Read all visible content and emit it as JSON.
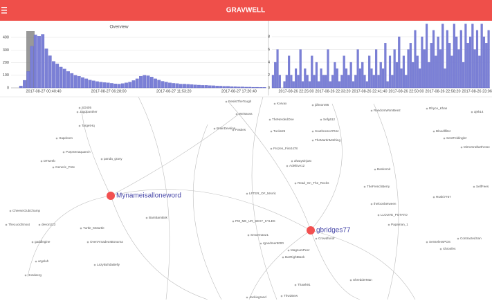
{
  "header": {
    "title": "GRAVWELL"
  },
  "overview": {
    "type": "bar",
    "title": "Overview",
    "color": "#7b80d6",
    "values": [
      15,
      60,
      130,
      330,
      420,
      410,
      425,
      310,
      255,
      210,
      190,
      165,
      150,
      130,
      115,
      100,
      92,
      82,
      72,
      62,
      56,
      50,
      46,
      42,
      40,
      36,
      32,
      30,
      34,
      40,
      46,
      58,
      72,
      92,
      100,
      96,
      86,
      72,
      62,
      52,
      46,
      40,
      36,
      34,
      30,
      30,
      28,
      26,
      24,
      22,
      20,
      20,
      18,
      17,
      15,
      14,
      12,
      12,
      10,
      9,
      8,
      8,
      6,
      6,
      5,
      5,
      4,
      4
    ],
    "ylim": [
      0,
      450
    ],
    "yticks": [
      0,
      100,
      200,
      300,
      400
    ],
    "xtick_labels": [
      "2017-08-27 00:40:40",
      "2017-08-27 06:28:00",
      "2017-08-27 11:53:20",
      "2017-08-27 17:20:40"
    ]
  },
  "detail": {
    "type": "bar",
    "color": "#7b80d6",
    "values": [
      2,
      4,
      6,
      2,
      0,
      1,
      2,
      5,
      2,
      1,
      3,
      2,
      6,
      1,
      3,
      2,
      1,
      5,
      2,
      4,
      1,
      3,
      2,
      2,
      6,
      1,
      2,
      4,
      3,
      1,
      2,
      5,
      3,
      2,
      4,
      1,
      2,
      6,
      3,
      4,
      2,
      1,
      5,
      3,
      2,
      6,
      2,
      4,
      3,
      7,
      1,
      5,
      2,
      6,
      4,
      8,
      3,
      5,
      2,
      6,
      7,
      4,
      9,
      5,
      3,
      8,
      6,
      10,
      4,
      7,
      9,
      5,
      8,
      6,
      10,
      3,
      9,
      7,
      5,
      10,
      8,
      6,
      9,
      4,
      10,
      7,
      8,
      10,
      6,
      9,
      5,
      10,
      8,
      7,
      9
    ],
    "ylim": [
      0,
      10.5
    ],
    "yticks": [
      0,
      2,
      4,
      6,
      8
    ],
    "xtick_labels": [
      "2017-08-26 22:25:00",
      "2017-08-26 22:33:20",
      "2017-08-26 22:41:40",
      "2017-08-26 22:50:00",
      "2017-08-26 22:58:20",
      "2017-08-26 23:06:40"
    ]
  },
  "graph": {
    "hubs": [
      "Mynameisalloneword",
      "gbridges77"
    ],
    "nodes": [
      "SD405",
      "Jagdpanther",
      "TargetHq",
      "Hapdoom",
      "PurpSenaquanch",
      "panda_gravy",
      "DTweeb",
      "Generic_Pete",
      "CheeseClubChamp",
      "TheLucidSnout",
      "devon223",
      "gaddlegine",
      "argoluh",
      "Hondacrg",
      "Turtle_Moturtle",
      "OverIAmadeusBonuma",
      "LazyBuhdaBelly",
      "BamBamBok",
      "ResistTheTough",
      "Korvax",
      "jdhnom96",
      "Weissoss",
      "TheNerdedOne",
      "Sefg612",
      "BrainDevkins",
      "Pasties",
      "Tucks26",
      "Southness47044",
      "TheMartinMothing",
      "Frozen_Fire2478",
      "alwaysinjust",
      "AdelEve12",
      "Read_On_The_Rocks",
      "LFTER_OF_MAVic",
      "PM_ME_UR_SEXY_KYLES",
      "Smoeman21",
      "rgoodmer5000",
      "BarRightBank",
      "MagnumPeer",
      "Crowdfundr",
      "TheFrenchBerry",
      "RandomWomBee2",
      "Rhyce_Khan",
      "ajek14",
      "Bloodlfilter",
      "SentFeldingler",
      "Mirrorsraftarthrose",
      "SelfFees",
      "Ruski7767",
      "theloonbetween",
      "LLOUVE_POTATO",
      "Papaman_1",
      "SenselessPOS",
      "Xhronfes",
      "Thawk91",
      "ShredderMan",
      "Jackiegrand",
      "Thw2Bew",
      "ContractedXan",
      "Banknmit"
    ]
  }
}
